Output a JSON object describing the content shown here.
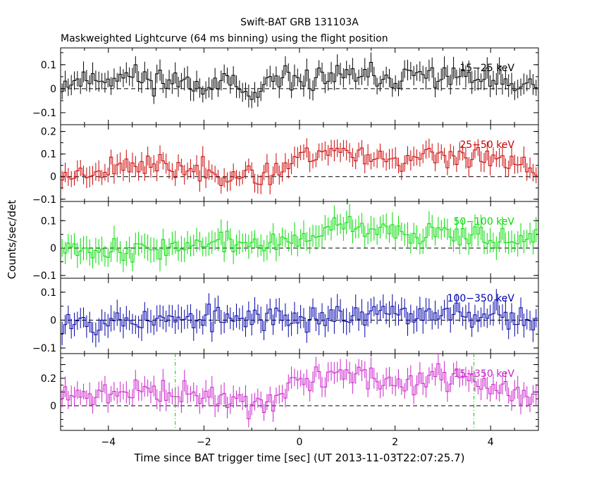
{
  "chart_data": {
    "type": "line",
    "title": "Swift-BAT GRB 131103A",
    "subtitle": "Maskweighted Lightcurve (64 ms binning) using the flight position",
    "xlabel": "Time since BAT trigger time [sec] (UT 2013-11-03T22:07:25.7)",
    "ylabel": "Counts/sec/det",
    "xlim": [
      -5.0,
      5.0
    ],
    "x_ticks": [
      -4,
      -2,
      0,
      2,
      4
    ],
    "x_tick_labels": [
      "−4",
      "−2",
      "0",
      "2",
      "4"
    ],
    "bin_width_s": 0.064,
    "markers": [
      -2.6,
      3.65
    ],
    "panels": [
      {
        "name": "15−25 keV",
        "color": "#000000",
        "ylim": [
          -0.15,
          0.17
        ],
        "y_ticks": [
          -0.1,
          0,
          0.1
        ],
        "y_tick_labels": [
          "−0.1",
          "0",
          "0.1"
        ],
        "level": [
          [
            -5,
            0.02
          ],
          [
            -4.5,
            0.04
          ],
          [
            -3.5,
            0.05
          ],
          [
            -2.5,
            0.03
          ],
          [
            -1.5,
            0.02
          ],
          [
            -1.0,
            -0.04
          ],
          [
            -0.5,
            0.02
          ],
          [
            0,
            0.04
          ],
          [
            1.0,
            0.05
          ],
          [
            2.0,
            0.04
          ],
          [
            3.0,
            0.06
          ],
          [
            4.0,
            0.03
          ],
          [
            5.0,
            0.0
          ]
        ],
        "sigma": 0.04,
        "spread": 0.04,
        "seed": 11
      },
      {
        "name": "25−50 keV",
        "color": "#cc0000",
        "ylim": [
          -0.11,
          0.23
        ],
        "y_ticks": [
          -0.1,
          0,
          0.1,
          0.2
        ],
        "y_tick_labels": [
          "−0.1",
          "0",
          "0.1",
          "0.2"
        ],
        "level": [
          [
            -5,
            0.0
          ],
          [
            -4.5,
            0.02
          ],
          [
            -3.5,
            0.06
          ],
          [
            -2.5,
            0.03
          ],
          [
            -1.5,
            0.02
          ],
          [
            -1.0,
            -0.02
          ],
          [
            -0.5,
            0.03
          ],
          [
            0,
            0.09
          ],
          [
            0.7,
            0.12
          ],
          [
            1.5,
            0.09
          ],
          [
            2.5,
            0.07
          ],
          [
            3.0,
            0.1
          ],
          [
            4.0,
            0.07
          ],
          [
            5.0,
            0.03
          ]
        ],
        "sigma": 0.04,
        "spread": 0.04,
        "seed": 23
      },
      {
        "name": "50−100 keV",
        "color": "#00dd00",
        "ylim": [
          -0.11,
          0.17
        ],
        "y_ticks": [
          -0.1,
          0,
          0.1
        ],
        "y_tick_labels": [
          "−0.1",
          "0",
          "0.1"
        ],
        "level": [
          [
            -5,
            0.02
          ],
          [
            -4.5,
            0.0
          ],
          [
            -3.5,
            -0.01
          ],
          [
            -2.5,
            0.01
          ],
          [
            -1.5,
            0.02
          ],
          [
            -0.5,
            0.01
          ],
          [
            0,
            0.03
          ],
          [
            0.8,
            0.08
          ],
          [
            1.5,
            0.06
          ],
          [
            2.5,
            0.05
          ],
          [
            3.0,
            0.07
          ],
          [
            4.0,
            0.04
          ],
          [
            5.0,
            0.02
          ]
        ],
        "sigma": 0.04,
        "spread": 0.03,
        "seed": 37
      },
      {
        "name": "100−350 keV",
        "color": "#0000aa",
        "ylim": [
          -0.12,
          0.15
        ],
        "y_ticks": [
          -0.1,
          0,
          0.1
        ],
        "y_tick_labels": [
          "−0.1",
          "0",
          "0.1"
        ],
        "level": [
          [
            -5,
            0.0
          ],
          [
            -2,
            0.0
          ],
          [
            0,
            0.01
          ],
          [
            2,
            0.02
          ],
          [
            3.5,
            0.03
          ],
          [
            5,
            0.0
          ]
        ],
        "sigma": 0.04,
        "spread": 0.035,
        "seed": 53
      },
      {
        "name": "15−350 keV",
        "color": "#cc22cc",
        "ylim": [
          -0.18,
          0.38
        ],
        "y_ticks": [
          0,
          0.1,
          0.2,
          0.3
        ],
        "y_tick_labels": [
          "0",
          "",
          "0.2",
          ""
        ],
        "level": [
          [
            -5,
            0.06
          ],
          [
            -4.5,
            0.06
          ],
          [
            -3.5,
            0.12
          ],
          [
            -2.5,
            0.08
          ],
          [
            -1.5,
            0.06
          ],
          [
            -1.0,
            0.0
          ],
          [
            -0.5,
            0.06
          ],
          [
            0,
            0.17
          ],
          [
            0.7,
            0.24
          ],
          [
            1.5,
            0.2
          ],
          [
            2.5,
            0.15
          ],
          [
            3.0,
            0.22
          ],
          [
            4.0,
            0.14
          ],
          [
            5.0,
            0.05
          ]
        ],
        "sigma": 0.07,
        "spread": 0.07,
        "seed": 71
      }
    ]
  }
}
